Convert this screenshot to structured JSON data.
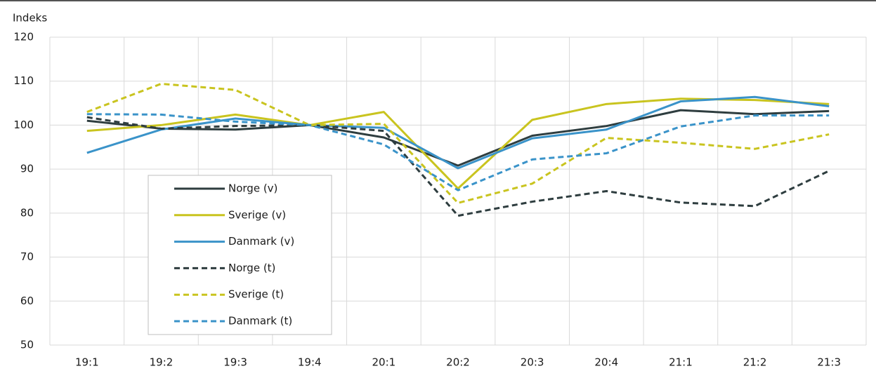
{
  "chart_data": {
    "type": "line",
    "ylabel": "Indeks",
    "categories": [
      "19:1",
      "19:2",
      "19:3",
      "19:4",
      "20:1",
      "20:2",
      "20:3",
      "20:4",
      "21:1",
      "21:2",
      "21:3"
    ],
    "series": [
      {
        "name": "Norge (v)",
        "color": "#2e3d3f",
        "linestyle": "solid",
        "values": [
          101,
          99.2,
          99,
          100,
          97.2,
          90.8,
          97.6,
          99.8,
          103.4,
          102.5,
          103.2
        ]
      },
      {
        "name": "Sverige (v)",
        "color": "#c9c41f",
        "linestyle": "solid",
        "values": [
          98.7,
          100,
          102.4,
          100,
          103,
          85.6,
          101.2,
          104.8,
          106,
          105.7,
          104.8
        ]
      },
      {
        "name": "Danmark (v)",
        "color": "#3a93c9",
        "linestyle": "solid",
        "values": [
          93.7,
          99,
          101.5,
          100,
          99.4,
          90.2,
          97,
          99,
          105.4,
          106.4,
          104.3
        ]
      },
      {
        "name": "Norge (t)",
        "color": "#2e3d3f",
        "linestyle": "dashed",
        "values": [
          101.8,
          99.2,
          99.8,
          100,
          98.7,
          79.4,
          82.6,
          85,
          82.4,
          81.6,
          89.6
        ]
      },
      {
        "name": "Sverige (t)",
        "color": "#c9c41f",
        "linestyle": "dashed",
        "values": [
          103,
          109.4,
          108,
          100,
          100.3,
          82.3,
          86.7,
          97.1,
          96,
          94.6,
          97.9
        ]
      },
      {
        "name": "Danmark (t)",
        "color": "#3a93c9",
        "linestyle": "dashed",
        "values": [
          102.5,
          102.4,
          100.8,
          100,
          95.6,
          85.2,
          92.2,
          93.6,
          99.7,
          102.2,
          102.2
        ]
      }
    ],
    "ylim": [
      50,
      120
    ],
    "yticks": [
      50,
      60,
      70,
      80,
      90,
      100,
      110,
      120
    ],
    "grid": true,
    "legend_position": "lower left"
  }
}
